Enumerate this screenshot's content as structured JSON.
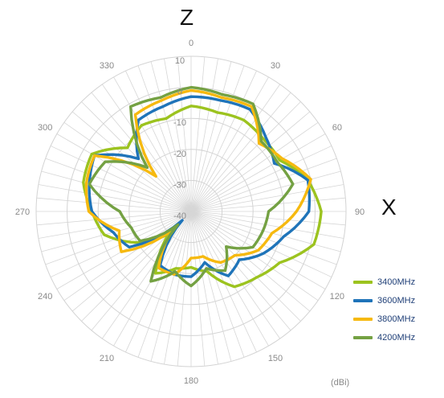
{
  "axis_labels": {
    "top": "Z",
    "right": "X"
  },
  "unit": "(dBi)",
  "chart_data": {
    "type": "line",
    "polar": true,
    "radial_ticks": [
      10,
      0,
      -10,
      -20,
      -30,
      -40
    ],
    "radial_range": [
      -40,
      10
    ],
    "angle_ticks": [
      0,
      30,
      60,
      90,
      120,
      150,
      180,
      210,
      240,
      270,
      300,
      330
    ],
    "angle_step": 5,
    "grid": true,
    "legend": "bottom-right",
    "angles": [
      0,
      15,
      30,
      45,
      60,
      75,
      90,
      105,
      120,
      135,
      150,
      165,
      180,
      195,
      210,
      225,
      240,
      255,
      270,
      285,
      300,
      315,
      330,
      345
    ],
    "series": [
      {
        "name": "3400MHz",
        "color": "#9cc31f",
        "values": [
          -6,
          -7,
          -6,
          -7,
          -7,
          -1,
          2,
          1,
          -7,
          -10,
          -12,
          -20,
          -22,
          -21,
          -17,
          -30,
          -20,
          -11,
          -8,
          -4,
          -3,
          -11,
          -8,
          -9
        ]
      },
      {
        "name": "3600MHz",
        "color": "#1f74b9",
        "values": [
          -3,
          -3,
          -2,
          -6,
          -9,
          -1,
          -2,
          -9,
          -13,
          -18,
          -16,
          -23,
          -19,
          -19,
          -20,
          -36,
          -17,
          -14,
          -8,
          -6,
          -4,
          -16,
          -6,
          -5
        ]
      },
      {
        "name": "3800MHz",
        "color": "#f6b90f",
        "values": [
          -1,
          -2,
          -1,
          -9,
          -6,
          0,
          -6,
          -13,
          -15,
          -20,
          -21,
          -25,
          -25,
          -19,
          -19,
          -32,
          -14,
          -16,
          -7,
          -5,
          -4,
          -24,
          -4,
          -3
        ]
      },
      {
        "name": "4200MHz",
        "color": "#74a143",
        "values": [
          0,
          -1,
          0,
          -8,
          -8,
          -6,
          -15,
          -16,
          -17,
          -24,
          -18,
          -21,
          -16,
          -20,
          -14,
          -34,
          -21,
          -20,
          -17,
          -6,
          -8,
          -20,
          -1,
          -2
        ]
      }
    ]
  }
}
